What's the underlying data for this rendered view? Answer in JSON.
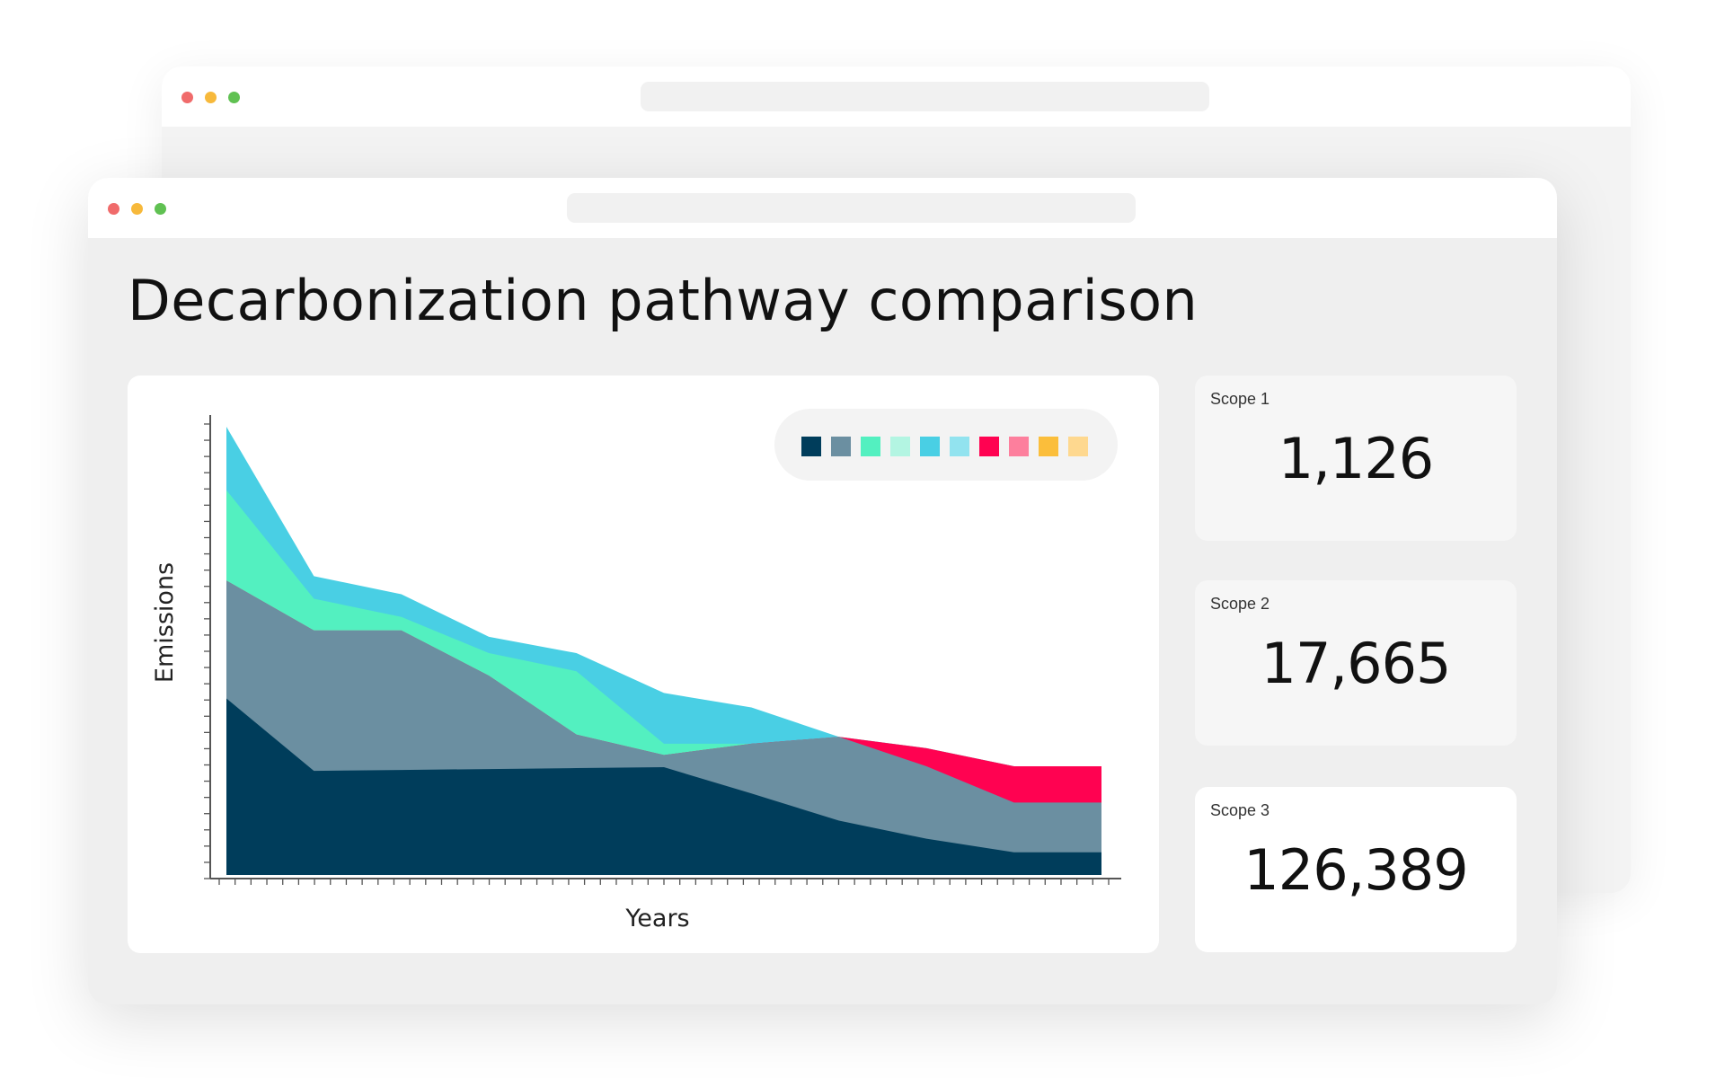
{
  "page_title": "Decarbonization pathway comparison",
  "window_controls": {
    "close": "#f06b6b",
    "minimize": "#f7b93b",
    "maximize": "#60c152"
  },
  "scopes": [
    {
      "label": "Scope 1",
      "value": "1,126"
    },
    {
      "label": "Scope 2",
      "value": "17,665"
    },
    {
      "label": "Scope 3",
      "value": "126,389"
    }
  ],
  "legend_colors": [
    "#003d5b",
    "#6b8fa1",
    "#53f0c0",
    "#b3f5e2",
    "#49cfe4",
    "#92e3ef",
    "#ff0251",
    "#fd7f9d",
    "#fbbe3b",
    "#fed88f"
  ],
  "chart_data": {
    "type": "area",
    "xlabel": "Years",
    "ylabel": "Emissions",
    "x": [
      0,
      1,
      2,
      3,
      4,
      5,
      6,
      7,
      8,
      9,
      10
    ],
    "xlim": [
      0,
      10
    ],
    "ylim": [
      0,
      100
    ],
    "stacked_boundaries": [
      {
        "color": "#003d5b",
        "values": [
          39,
          23,
          23.2,
          23.4,
          23.6,
          23.8,
          18,
          12,
          8,
          5,
          5
        ]
      },
      {
        "color": "#6b8fa1",
        "values": [
          65,
          54,
          54,
          44,
          31,
          26.5,
          29,
          30.5,
          24,
          16,
          16
        ]
      },
      {
        "color": "#ff0251",
        "values": [
          65,
          54,
          54,
          44,
          31,
          26.5,
          29,
          30.5,
          28,
          24,
          24
        ]
      },
      {
        "color": "#53f0c0",
        "values": [
          85,
          61,
          57,
          49,
          45,
          29,
          29,
          30.5,
          28,
          24,
          24
        ]
      },
      {
        "color": "#49cfe4",
        "values": [
          99,
          66,
          62,
          52.6,
          49,
          40.2,
          37,
          30.5,
          28,
          24,
          24
        ]
      }
    ]
  }
}
